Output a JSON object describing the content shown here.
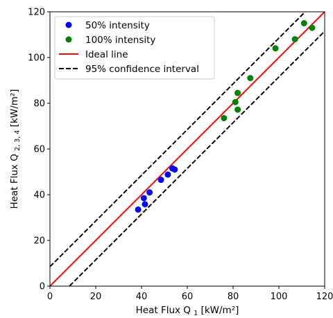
{
  "chart_data": {
    "type": "scatter",
    "xlabel": "Heat Flux Q",
    "xlabel_sub": "1",
    "xlabel_unit": " [kW/m²]",
    "ylabel": "Heat Flux Q",
    "ylabel_sub": "2, 3, 4",
    "ylabel_unit": " [kW/m²]",
    "xlim": [
      0,
      120
    ],
    "ylim": [
      0,
      120
    ],
    "xticks": [
      0,
      20,
      40,
      60,
      80,
      100,
      120
    ],
    "yticks": [
      0,
      20,
      40,
      60,
      80,
      100,
      120
    ],
    "grid": false,
    "legend_position": "top-left",
    "series": [
      {
        "name": "50% intensity",
        "color": "#0000ff",
        "marker": "circle",
        "points": [
          [
            38.5,
            33.5
          ],
          [
            41.0,
            38.5
          ],
          [
            41.5,
            35.8
          ],
          [
            43.5,
            41.0
          ],
          [
            48.5,
            46.5
          ],
          [
            51.5,
            48.8
          ],
          [
            53.5,
            51.5
          ],
          [
            54.5,
            51.0
          ]
        ]
      },
      {
        "name": "100% intensity",
        "color": "#008000",
        "marker": "circle",
        "points": [
          [
            76.0,
            73.5
          ],
          [
            81.0,
            80.5
          ],
          [
            82.0,
            84.5
          ],
          [
            82.0,
            77.2
          ],
          [
            87.5,
            91.0
          ],
          [
            98.5,
            104.0
          ],
          [
            107.0,
            108.0
          ],
          [
            111.0,
            115.0
          ],
          [
            114.5,
            113.0
          ]
        ]
      }
    ],
    "lines": [
      {
        "name": "Ideal line",
        "color": "#ff0000",
        "style": "solid",
        "x": [
          0,
          120
        ],
        "y": [
          0,
          120
        ]
      },
      {
        "name": "95% confidence interval",
        "color": "#000000",
        "style": "dashed",
        "segments": [
          {
            "x": [
              0,
              120
            ],
            "y": [
              8.5,
              128.5
            ]
          },
          {
            "x": [
              0,
              120
            ],
            "y": [
              -8.5,
              111.5
            ]
          }
        ]
      }
    ]
  }
}
